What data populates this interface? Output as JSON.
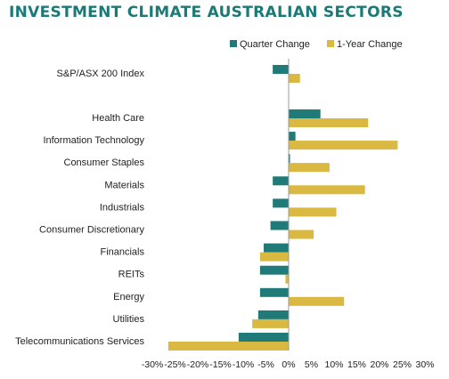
{
  "chart_data": {
    "type": "bar",
    "orientation": "horizontal",
    "title": "INVESTMENT CLIMATE AUSTRALIAN SECTORS",
    "categories": [
      "S&P/ASX 200 Index",
      "Health Care",
      "Information Technology",
      "Consumer Staples",
      "Materials",
      "Industrials",
      "Consumer Discretionary",
      "Financials",
      "REITs",
      "Energy",
      "Utilities",
      "Telecommunications Services"
    ],
    "series": [
      {
        "name": "Quarter Change",
        "color": "#1f7a78",
        "values": [
          -3.5,
          7.0,
          1.5,
          0.3,
          -3.5,
          -3.5,
          -4.0,
          -5.5,
          -6.3,
          -6.3,
          -6.7,
          -11.0
        ]
      },
      {
        "name": "1-Year Change",
        "color": "#d9b941",
        "values": [
          2.5,
          17.5,
          24.0,
          9.0,
          16.8,
          10.5,
          5.5,
          -6.3,
          -0.7,
          12.2,
          -8.0,
          -26.5
        ]
      }
    ],
    "xlim": [
      -30,
      30
    ],
    "xticks": [
      -30,
      -25,
      -20,
      -15,
      -10,
      -5,
      0,
      5,
      10,
      15,
      20,
      25,
      30
    ],
    "tick_labels": [
      "-30%",
      "-25%",
      "-20%",
      "-15%",
      "-10%",
      "-5%",
      "0%",
      "5%",
      "10%",
      "15%",
      "20%",
      "25%",
      "30%"
    ],
    "legend_position": "top-right",
    "grid": false
  }
}
